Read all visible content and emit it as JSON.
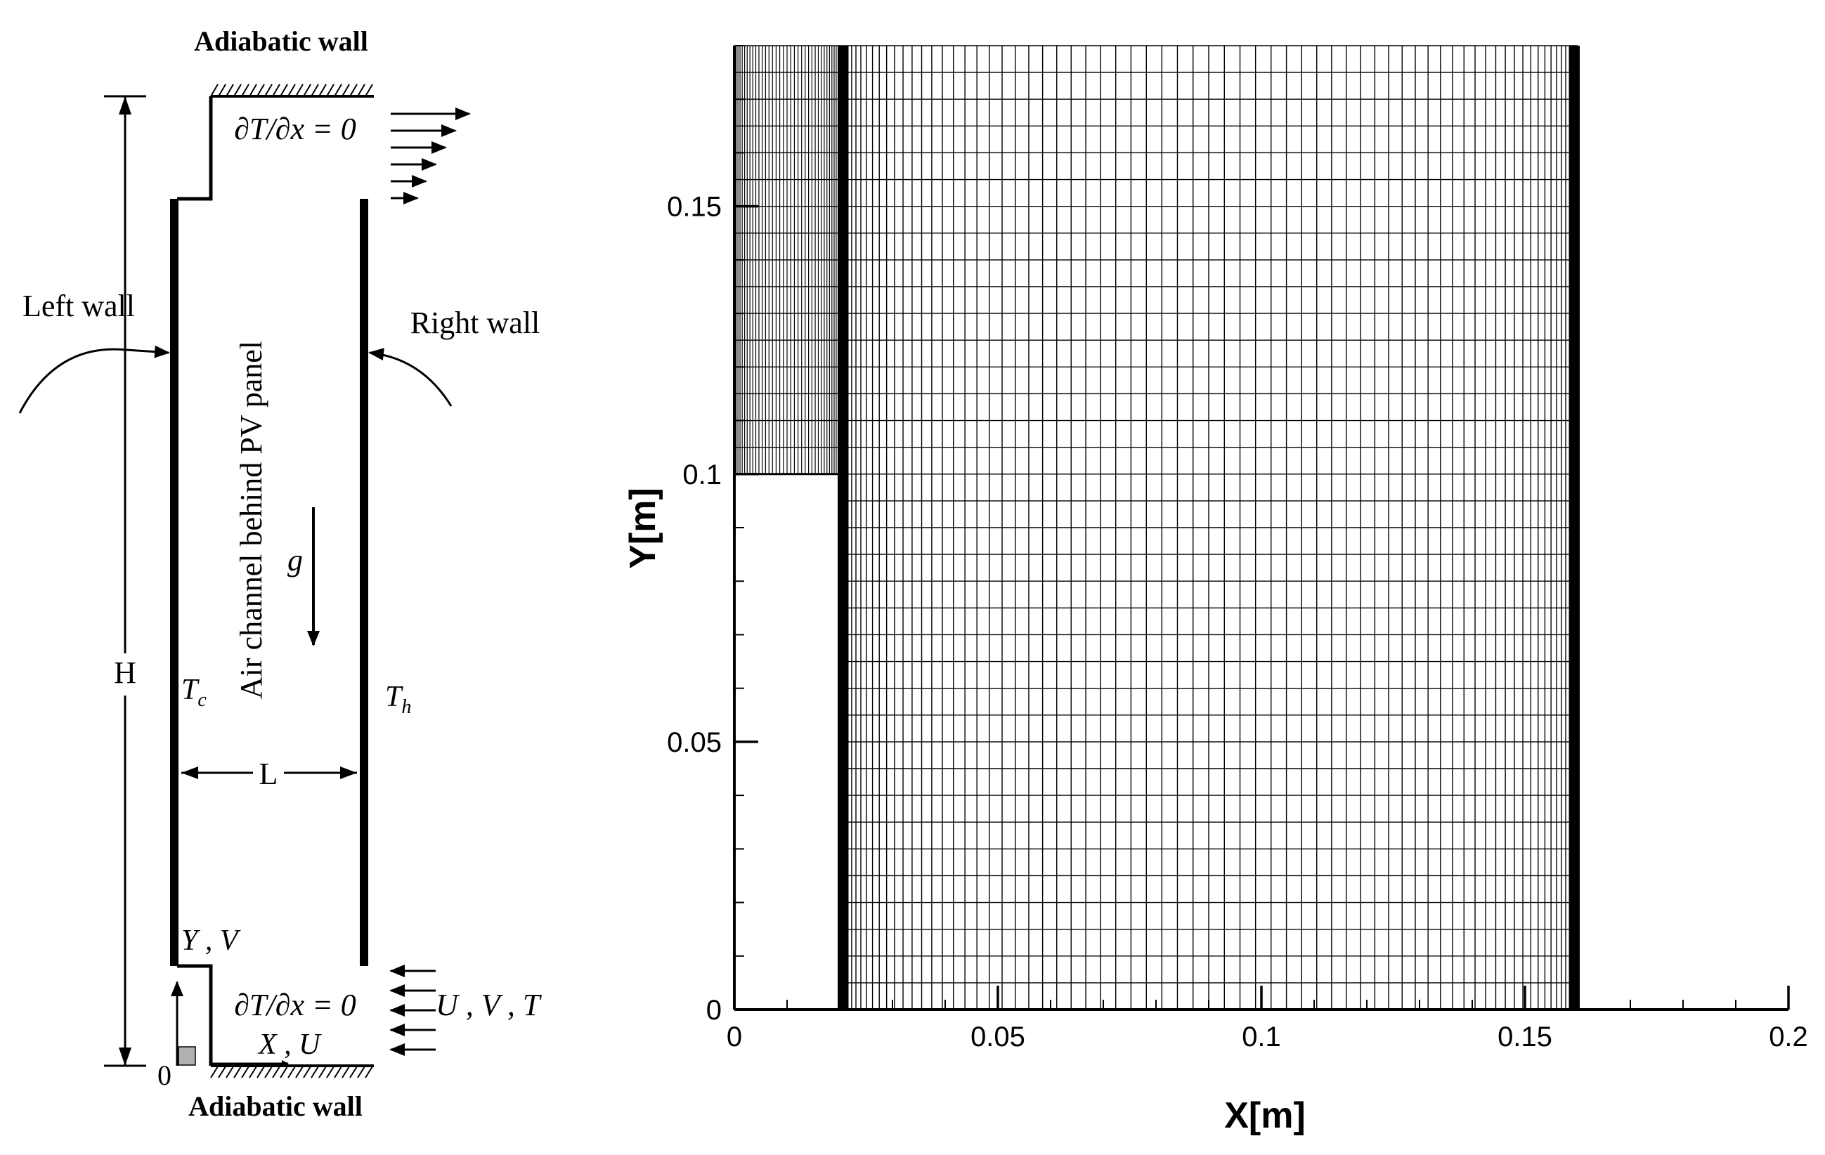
{
  "schematic": {
    "top_wall_label": "Adiabatic wall",
    "bottom_wall_label": "Adiabatic wall",
    "outlet_bc": "∂T/∂x = 0",
    "inlet_bc": "∂T/∂x = 0",
    "left_wall_label": "Left wall",
    "right_wall_label": "Right wall",
    "channel_label": "Air channel behind PV panel",
    "gravity_label": "g",
    "height_label": "H",
    "width_label": "L",
    "cold_temp": "T",
    "cold_sub": "c",
    "hot_temp": "T",
    "hot_sub": "h",
    "y_axis_label": "Y , V",
    "x_axis_label": "X , U",
    "origin_label": "0",
    "inlet_vars": "U , V , T"
  },
  "mesh": {
    "xlabel": "X[m]",
    "ylabel": "Y[m]",
    "xlim": [
      0,
      0.2
    ],
    "ylim": [
      0,
      0.18
    ],
    "x_ticks": [
      0,
      0.05,
      0.1,
      0.15,
      0.2
    ],
    "x_tick_labels": [
      "0",
      "0.05",
      "0.1",
      "0.15",
      "0.2"
    ],
    "y_ticks": [
      0,
      0.05,
      0.1,
      0.15
    ],
    "y_tick_labels": [
      "0",
      "0.05",
      "0.1",
      "0.15"
    ],
    "x_minor_step": 0.01,
    "y_minor_step": 0.01,
    "channel_x": [
      0.02,
      0.16
    ],
    "inlet_block": {
      "x": [
        0,
        0.02
      ],
      "y": [
        0,
        0.1
      ]
    },
    "outlet_block": {
      "x": [
        0,
        0.02
      ],
      "y": [
        0.1,
        0.18
      ]
    },
    "grid_line_color": "#000000"
  }
}
